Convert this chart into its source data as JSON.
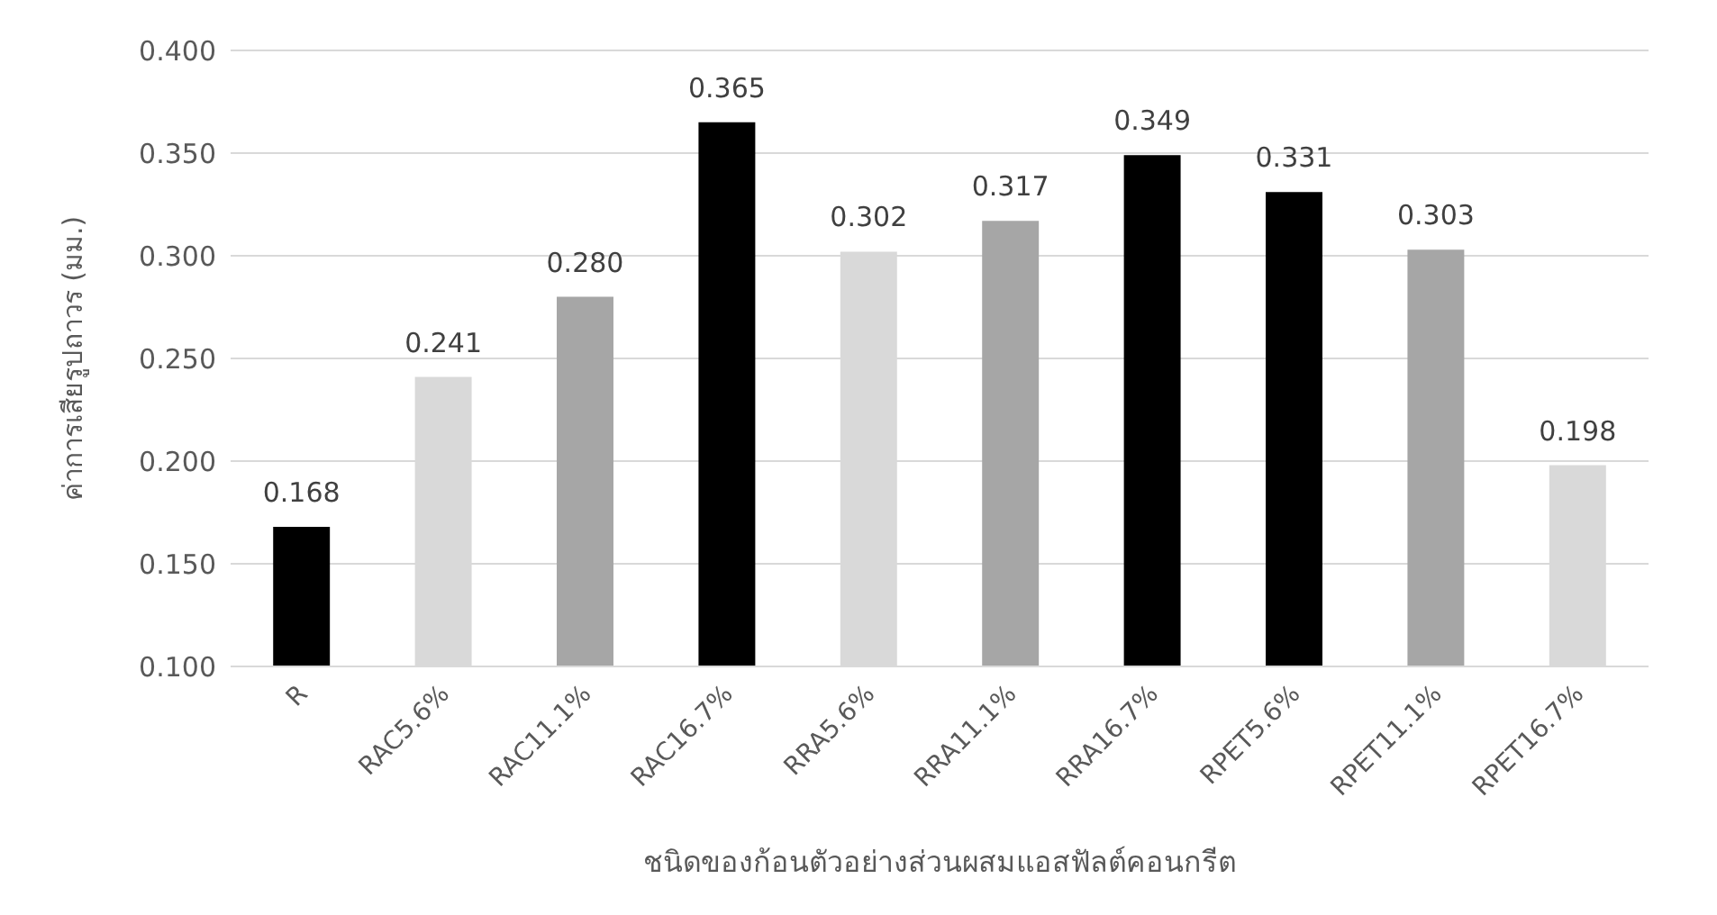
{
  "chart_data": {
    "type": "bar",
    "xlabel": "ชนิดของก้อนตัวอย่างส่วนผสมแอสฟัลต์คอนกรีต",
    "ylabel": "ค่าการเสียรูปถาวร (มม.)",
    "categories": [
      "R",
      "RAC5.6%",
      "RAC11.1%",
      "RAC16.7%",
      "RRA5.6%",
      "RRA11.1%",
      "RRA16.7%",
      "RPET5.6%",
      "RPET11.1%",
      "RPET16.7%"
    ],
    "values": [
      0.168,
      0.241,
      0.28,
      0.365,
      0.302,
      0.317,
      0.349,
      0.331,
      0.303,
      0.198
    ],
    "value_labels": [
      "0.168",
      "0.241",
      "0.280",
      "0.365",
      "0.302",
      "0.317",
      "0.349",
      "0.331",
      "0.303",
      "0.198"
    ],
    "colors": [
      "#000000",
      "#d9d9d9",
      "#a6a6a6",
      "#000000",
      "#d9d9d9",
      "#a6a6a6",
      "#000000",
      "#000000",
      "#a6a6a6",
      "#d9d9d9"
    ],
    "ylim": [
      0.1,
      0.4
    ],
    "yticks": [
      {
        "value": 0.1,
        "label": "0.100"
      },
      {
        "value": 0.15,
        "label": "0.150"
      },
      {
        "value": 0.2,
        "label": "0.200"
      },
      {
        "value": 0.25,
        "label": "0.250"
      },
      {
        "value": 0.3,
        "label": "0.300"
      },
      {
        "value": 0.35,
        "label": "0.350"
      },
      {
        "value": 0.4,
        "label": "0.400"
      }
    ],
    "grid": "y"
  }
}
